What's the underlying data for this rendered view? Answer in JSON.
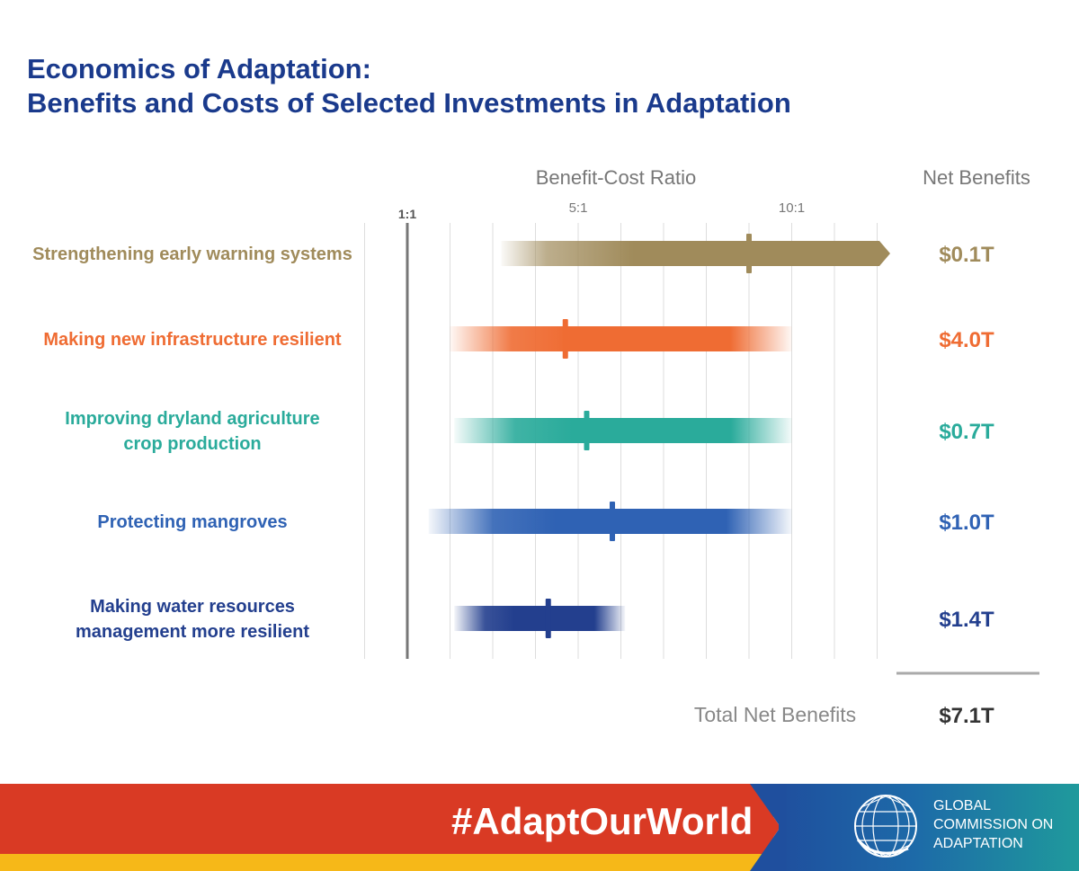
{
  "title": {
    "line1": "Economics of Adaptation:",
    "line2": "Benefits and Costs of Selected Investments in Adaptation"
  },
  "chart_data": {
    "type": "range-bar",
    "xlabel": "Benefit-Cost Ratio",
    "right_column_header": "Net Benefits",
    "x_ticks": [
      {
        "value": 1,
        "label": "1:1"
      },
      {
        "value": 5,
        "label": "5:1"
      },
      {
        "value": 10,
        "label": "10:1"
      }
    ],
    "xlim": [
      0,
      12
    ],
    "grid": true,
    "series": [
      {
        "name": "Strengthening early warning systems",
        "label_lines": [
          "Strengthening early warning systems"
        ],
        "range": [
          3.2,
          12
        ],
        "extends_beyond_axis": true,
        "marker": 9,
        "net_benefit": "$0.1T",
        "color": "#a08b5b"
      },
      {
        "name": "Making new infrastructure resilient",
        "label_lines": [
          "Making new infrastructure resilient"
        ],
        "range": [
          2,
          10
        ],
        "extends_beyond_axis": false,
        "marker": 4.7,
        "net_benefit": "$4.0T",
        "color": "#ef6c33"
      },
      {
        "name": "Improving dryland agriculture crop production",
        "label_lines": [
          "Improving dryland agriculture",
          "crop production"
        ],
        "range": [
          2.1,
          10
        ],
        "extends_beyond_axis": false,
        "marker": 5.2,
        "net_benefit": "$0.7T",
        "color": "#2aab9b"
      },
      {
        "name": "Protecting mangroves",
        "label_lines": [
          "Protecting mangroves"
        ],
        "range": [
          1.5,
          10
        ],
        "extends_beyond_axis": false,
        "marker": 5.8,
        "net_benefit": "$1.0T",
        "color": "#2f62b4"
      },
      {
        "name": "Making water resources management more resilient",
        "label_lines": [
          "Making water resources",
          "management more resilient"
        ],
        "range": [
          2.1,
          6.1
        ],
        "extends_beyond_axis": false,
        "marker": 4.3,
        "net_benefit": "$1.4T",
        "color": "#233f8e"
      }
    ],
    "total_label": "Total Net Benefits",
    "total_value": "$7.1T"
  },
  "footer": {
    "hashtag": "#AdaptOurWorld",
    "org_lines": [
      "GLOBAL",
      "COMMISSION ON",
      "ADAPTATION"
    ],
    "logo_icon": "globe-logo-icon",
    "colors": {
      "red": "#d93a24",
      "yellow": "#f6b818",
      "blue": "#1f4f9e",
      "teal": "#1f9a9c"
    }
  }
}
